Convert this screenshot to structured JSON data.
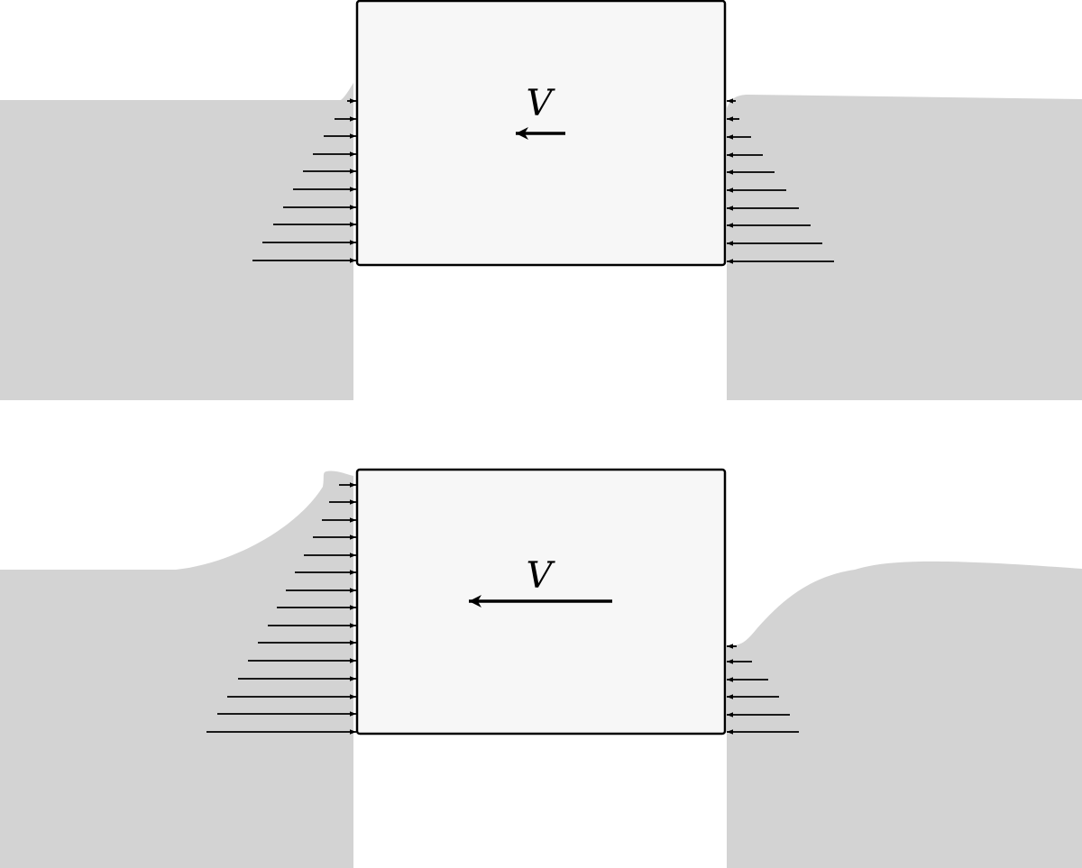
{
  "colors": {
    "fluid": "#d3d3d3",
    "block_fill": "#f7f7f7",
    "block_stroke": "#000000",
    "arrow": "#000000",
    "background": "#ffffff"
  },
  "panels": [
    {
      "velocity_label": "V",
      "velocity_arrow_direction": "left",
      "velocity_magnitude": "small",
      "left_pressure_arrows": 10,
      "right_pressure_arrows": 10
    },
    {
      "velocity_label": "V",
      "velocity_arrow_direction": "left",
      "velocity_magnitude": "large",
      "left_pressure_arrows": 15,
      "right_pressure_arrows": 6
    }
  ]
}
